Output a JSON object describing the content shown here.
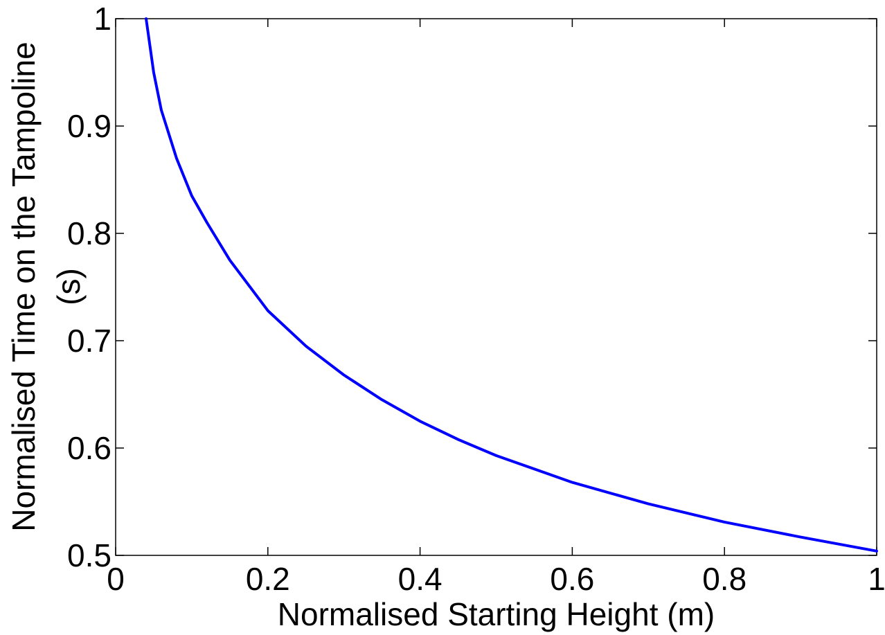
{
  "chart_data": {
    "type": "line",
    "title": "",
    "xlabel": "Normalised Starting Height (m)",
    "ylabel_lines": [
      "Normalised Time on the Tampoline",
      "(s)"
    ],
    "xlim": [
      0,
      1
    ],
    "ylim": [
      0.5,
      1
    ],
    "x_ticks": [
      0,
      0.2,
      0.4,
      0.6,
      0.8,
      1
    ],
    "x_tick_labels": [
      "0",
      "0.2",
      "0.4",
      "0.6",
      "0.8",
      "1"
    ],
    "y_ticks": [
      0.5,
      0.6,
      0.7,
      0.8,
      0.9,
      1
    ],
    "y_tick_labels": [
      "0.5",
      "0.6",
      "0.7",
      "0.8",
      "0.9",
      "1"
    ],
    "grid": false,
    "line_color": "#0000ff",
    "series": [
      {
        "x": [
          0.04,
          0.05,
          0.06,
          0.08,
          0.1,
          0.12,
          0.15,
          0.2,
          0.25,
          0.3,
          0.35,
          0.4,
          0.45,
          0.5,
          0.6,
          0.7,
          0.8,
          0.9,
          1.0
        ],
        "y": [
          1.0,
          0.95,
          0.915,
          0.87,
          0.835,
          0.81,
          0.775,
          0.728,
          0.695,
          0.668,
          0.645,
          0.625,
          0.608,
          0.593,
          0.568,
          0.548,
          0.531,
          0.517,
          0.504
        ]
      }
    ]
  }
}
